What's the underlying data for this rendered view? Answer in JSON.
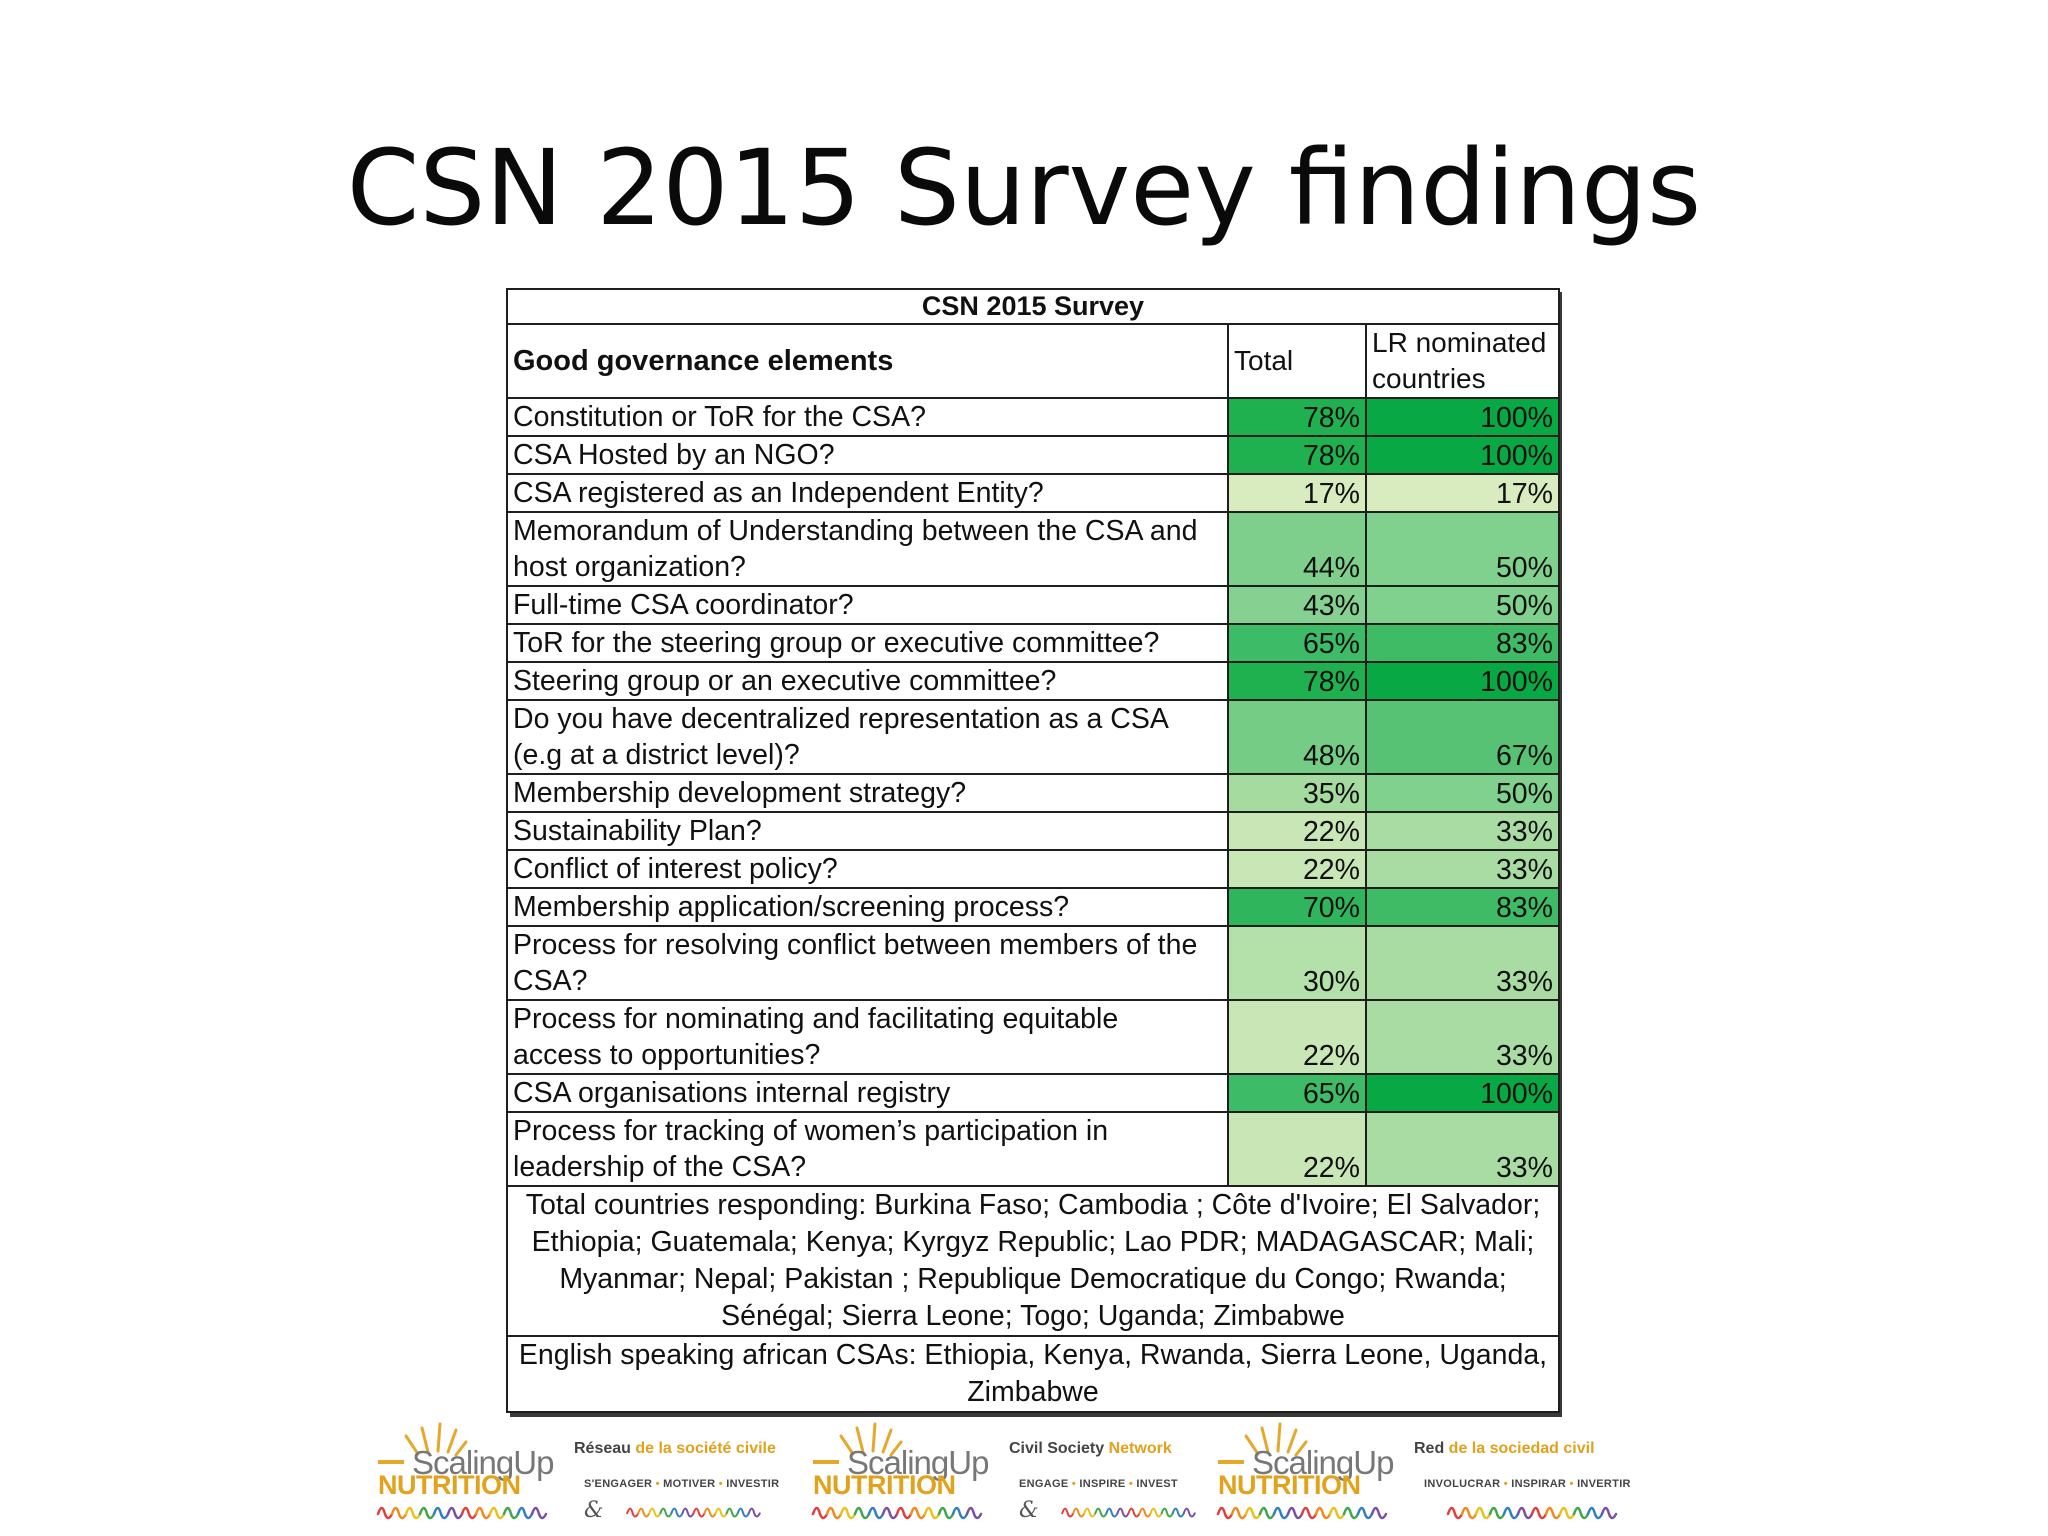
{
  "slide": {
    "title": "CSN 2015 Survey findings"
  },
  "table": {
    "title": "CSN 2015 Survey",
    "headers": {
      "element": "Good governance elements",
      "total": "Total",
      "lr_line1": "LR nominated",
      "lr_line2": "countries"
    },
    "rows": [
      {
        "label": "Constitution or ToR for the CSA?",
        "total": "78%",
        "lr": "100%",
        "total_color": "#1fb050",
        "lr_color": "#08a944"
      },
      {
        "label": "CSA Hosted by an NGO?",
        "total": "78%",
        "lr": "100%",
        "total_color": "#1fb050",
        "lr_color": "#08a944"
      },
      {
        "label": "CSA registered as an Independent Entity?",
        "total": "17%",
        "lr": "17%",
        "total_color": "#d9ecbf",
        "lr_color": "#d9ecbf"
      },
      {
        "label_line1": "Memorandum of Understanding between the CSA and",
        "label_line2": "host organization?",
        "total": "44%",
        "lr": "50%",
        "total_color": "#7fcf8c",
        "lr_color": "#80d18d"
      },
      {
        "label": "Full-time CSA coordinator?",
        "total": "43%",
        "lr": "50%",
        "total_color": "#86d192",
        "lr_color": "#80d18d"
      },
      {
        "label": "ToR for the steering group or executive committee?",
        "total": "65%",
        "lr": "83%",
        "total_color": "#3dbb66",
        "lr_color": "#3fbb66"
      },
      {
        "label": "Steering group or an executive committee?",
        "total": "78%",
        "lr": "100%",
        "total_color": "#1fb050",
        "lr_color": "#08a944"
      },
      {
        "label_line1": "Do you have decentralized representation as a CSA",
        "label_line2": "(e.g at a district level)?",
        "total": "48%",
        "lr": "67%",
        "total_color": "#75cc84",
        "lr_color": "#57c274"
      },
      {
        "label": "Membership development strategy?",
        "total": "35%",
        "lr": "50%",
        "total_color": "#a6db9f",
        "lr_color": "#80d18d"
      },
      {
        "label": "Sustainability Plan?",
        "total": "22%",
        "lr": "33%",
        "total_color": "#c9e6b6",
        "lr_color": "#a9dca3"
      },
      {
        "label": "Conflict of interest policy?",
        "total": "22%",
        "lr": "33%",
        "total_color": "#c9e6b6",
        "lr_color": "#a9dca3"
      },
      {
        "label": "Membership application/screening process?",
        "total": "70%",
        "lr": "83%",
        "total_color": "#2fb55c",
        "lr_color": "#3fbb66"
      },
      {
        "label_line1": "Process for resolving conflict between members of the",
        "label_line2": "CSA?",
        "total": "30%",
        "lr": "33%",
        "total_color": "#b4e0aa",
        "lr_color": "#a9dca3"
      },
      {
        "label_line1": "Process for nominating and facilitating equitable",
        "label_line2": "access to opportunities?",
        "total": "22%",
        "lr": "33%",
        "total_color": "#c9e6b6",
        "lr_color": "#a9dca3"
      },
      {
        "label": "CSA organisations internal registry",
        "total": "65%",
        "lr": "100%",
        "total_color": "#3dbb66",
        "lr_color": "#08a944"
      },
      {
        "label_line1": "Process for tracking of women’s participation in",
        "label_line2": "leadership of the CSA?",
        "total": "22%",
        "lr": "33%",
        "total_color": "#c9e6b6",
        "lr_color": "#a9dca3"
      }
    ],
    "countries_note": {
      "line1": "Total countries responding: Burkina Faso; Cambodia ; Côte d'Ivoire; El Salvador;",
      "line2": "Ethiopia; Guatemala; Kenya; Kyrgyz Republic; Lao PDR; MADAGASCAR; Mali;",
      "line3": "Myanmar; Nepal; Pakistan ; Republique Democratique du Congo; Rwanda;",
      "line4": "Sénégal; Sierra Leone; Togo; Uganda; Zimbabwe"
    },
    "english_note": {
      "line1": "English speaking african CSAs: Ethiopia, Kenya, Rwanda, Sierra Leone, Uganda,",
      "line2": "Zimbabwe"
    }
  },
  "footer": {
    "brand_word": "ScalingUp",
    "brand_sub": "NUTRITION",
    "networks": [
      {
        "name_dark": "Réseau",
        "name_gold": " de la société civile",
        "tag_a": "S'ENGAGER",
        "tag_b": "MOTIVER",
        "tag_c": "INVESTIR"
      },
      {
        "name_dark": "Civil Society",
        "name_gold": " Network",
        "tag_a": "ENGAGE",
        "tag_b": "INSPIRE",
        "tag_c": "INVEST"
      },
      {
        "name_dark": "Red",
        "name_gold": " de la sociedad civil",
        "tag_a": "INVOLUCRAR",
        "tag_b": "INSPIRAR",
        "tag_c": "INVERTIR"
      }
    ],
    "amp": "&",
    "learning_colors": [
      "#e23d3d",
      "#f08a1c",
      "#e8c21a",
      "#3fa649",
      "#2f7fc1",
      "#7a4ea3"
    ],
    "sun_color": "#e6a82a"
  }
}
